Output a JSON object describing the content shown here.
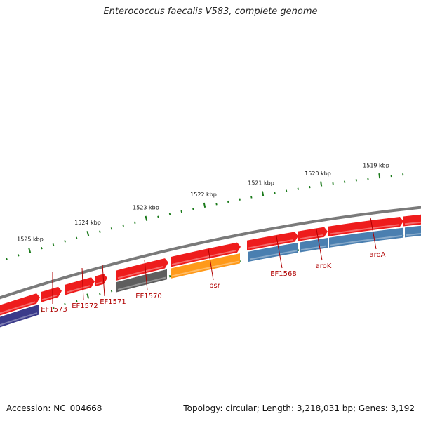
{
  "title": "Enterococcus faecalis V583, complete genome",
  "footer": {
    "accession": "Accession: NC_004668",
    "stats": "Topology: circular; Length: 3,218,031 bp; Genes: 3,192"
  },
  "colors": {
    "backbone": "#7a7a7a",
    "tick": "#1a7a1a",
    "gene_red": "#ee1c1c",
    "gene_blue": "#4a7fb0",
    "gene_navy": "#3a3a8a",
    "gene_gray": "#5e5e5e",
    "gene_orange": "#ff9a1a",
    "label": "#b00000"
  },
  "kbp_labels": [
    "1525 kbp",
    "1524 kbp",
    "1523 kbp",
    "1522 kbp",
    "1521 kbp",
    "1520 kbp",
    "1519 kbp"
  ],
  "gene_labels": [
    "EF1573",
    "EF1572",
    "EF1571",
    "EF1570",
    "psr",
    "EF1568",
    "aroK",
    "aroA"
  ]
}
